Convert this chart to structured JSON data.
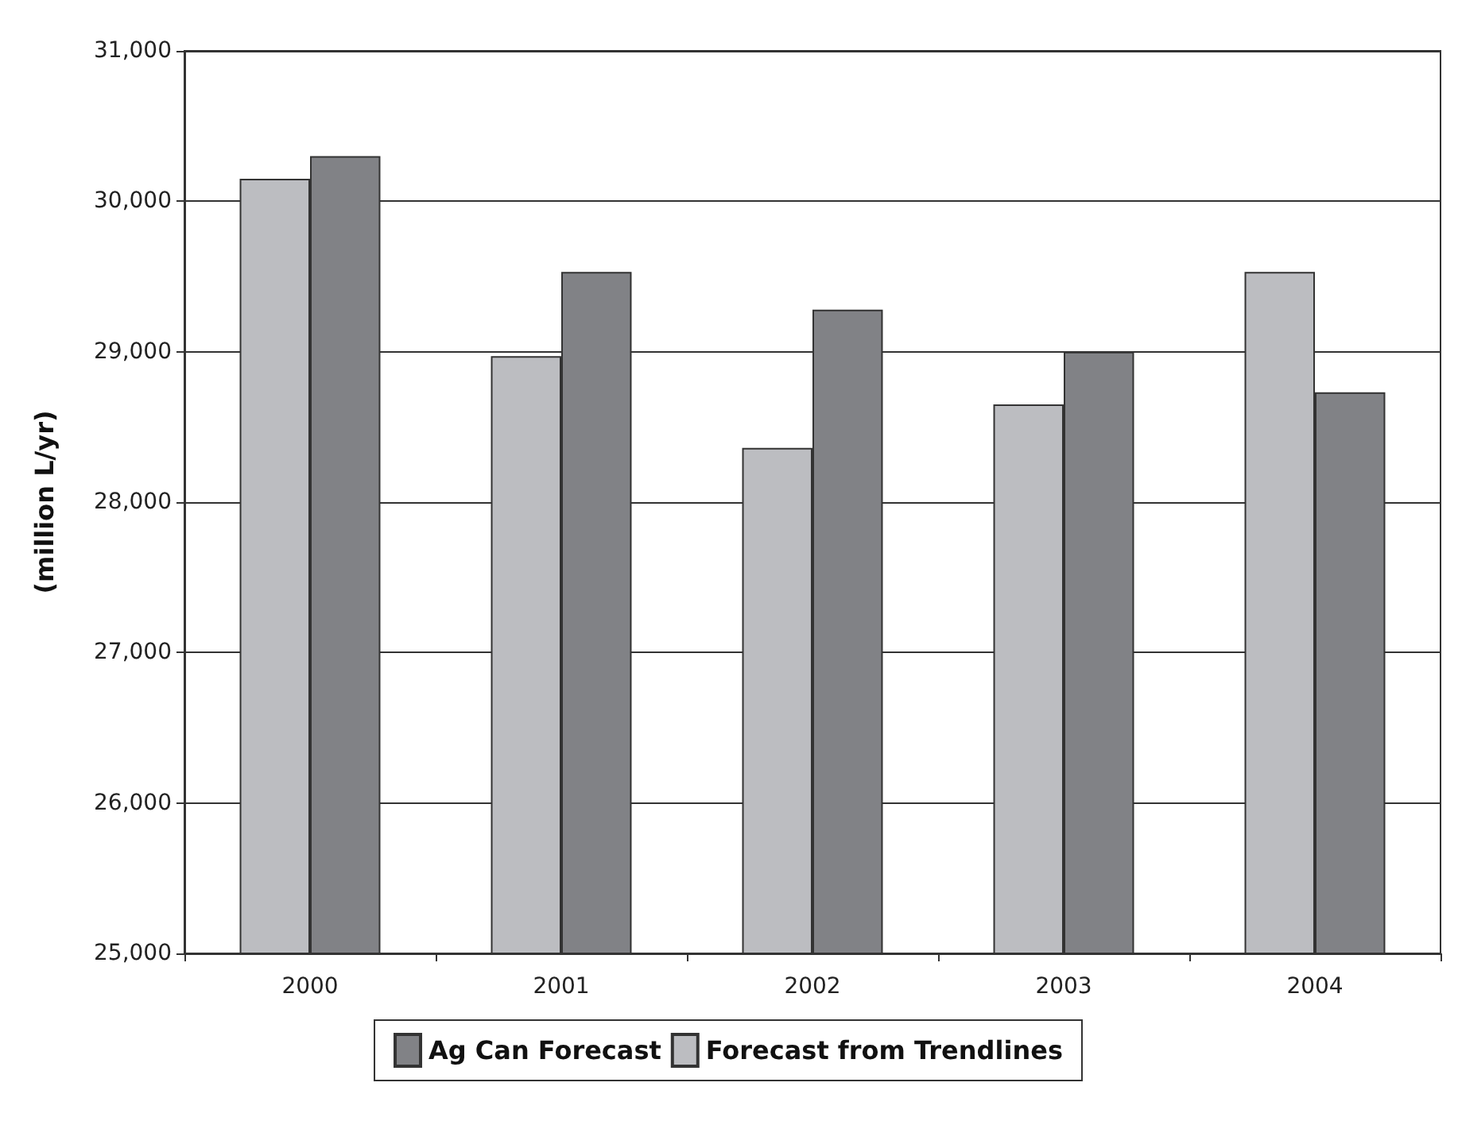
{
  "chart_data": {
    "type": "bar",
    "ylabel": "(million L/yr)",
    "categories": [
      "2000",
      "2001",
      "2002",
      "2003",
      "2004"
    ],
    "series": [
      {
        "name": "Forecast from Trendlines",
        "color": "#bcbdc1",
        "values": [
          30150,
          28970,
          28360,
          28650,
          29530
        ]
      },
      {
        "name": "Ag Can Forecast",
        "color": "#818286",
        "values": [
          30300,
          29530,
          29280,
          29000,
          28730
        ]
      }
    ],
    "ylim": [
      25000,
      31000
    ],
    "yticks": [
      {
        "value": 25000,
        "label": "25,000"
      },
      {
        "value": 26000,
        "label": "26,000"
      },
      {
        "value": 27000,
        "label": "27,000"
      },
      {
        "value": 28000,
        "label": "28,000"
      },
      {
        "value": 29000,
        "label": "29,000"
      },
      {
        "value": 30000,
        "label": "30,000"
      },
      {
        "value": 31000,
        "label": "31,000"
      }
    ],
    "grid": "y",
    "legend": "bottom"
  }
}
